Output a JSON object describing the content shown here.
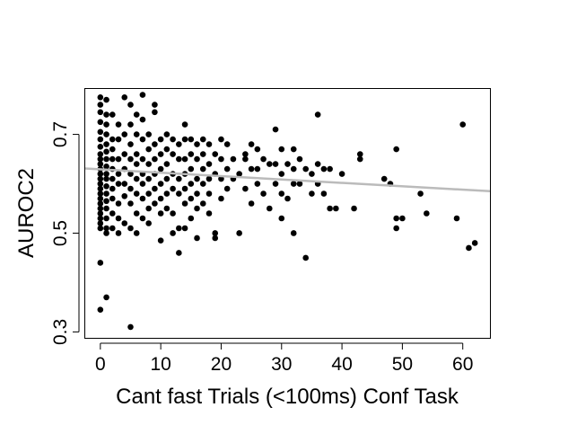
{
  "chart_data": {
    "type": "scatter",
    "title": "",
    "xlabel": "Cant fast Trials (<100ms) Conf Task",
    "ylabel": "AUROC2",
    "xlim": [
      -2.5,
      64.5
    ],
    "ylim": [
      0.288,
      0.792
    ],
    "xticks": [
      0,
      10,
      20,
      30,
      40,
      50,
      60
    ],
    "xtick_labels": [
      "0",
      "10",
      "20",
      "30",
      "40",
      "50",
      "60"
    ],
    "yticks": [
      0.3,
      0.5,
      0.7
    ],
    "ytick_labels": [
      "0.3",
      "0.5",
      "0.7"
    ],
    "grid": false,
    "point_color": "#000000",
    "fit_line": {
      "color": "#bbbbbb",
      "x": [
        -2.5,
        64.5
      ],
      "y": [
        0.631,
        0.585
      ]
    },
    "points": [
      [
        0,
        0.775
      ],
      [
        0,
        0.76
      ],
      [
        0,
        0.745
      ],
      [
        0,
        0.725
      ],
      [
        0,
        0.705
      ],
      [
        0,
        0.69
      ],
      [
        0,
        0.675
      ],
      [
        0,
        0.66
      ],
      [
        0,
        0.65
      ],
      [
        0,
        0.64
      ],
      [
        0,
        0.63
      ],
      [
        0,
        0.62
      ],
      [
        0,
        0.61
      ],
      [
        0,
        0.6
      ],
      [
        0,
        0.59
      ],
      [
        0,
        0.58
      ],
      [
        0,
        0.57
      ],
      [
        0,
        0.56
      ],
      [
        0,
        0.55
      ],
      [
        0,
        0.54
      ],
      [
        0,
        0.53
      ],
      [
        0,
        0.52
      ],
      [
        0,
        0.51
      ],
      [
        0,
        0.44
      ],
      [
        0,
        0.345
      ],
      [
        1,
        0.77
      ],
      [
        1,
        0.74
      ],
      [
        1,
        0.72
      ],
      [
        1,
        0.7
      ],
      [
        1,
        0.68
      ],
      [
        1,
        0.665
      ],
      [
        1,
        0.65
      ],
      [
        1,
        0.635
      ],
      [
        1,
        0.62
      ],
      [
        1,
        0.61
      ],
      [
        1,
        0.595
      ],
      [
        1,
        0.58
      ],
      [
        1,
        0.565
      ],
      [
        1,
        0.55
      ],
      [
        1,
        0.53
      ],
      [
        1,
        0.51
      ],
      [
        1,
        0.5
      ],
      [
        1,
        0.37
      ],
      [
        2,
        0.74
      ],
      [
        2,
        0.69
      ],
      [
        2,
        0.67
      ],
      [
        2,
        0.65
      ],
      [
        2,
        0.63
      ],
      [
        2,
        0.61
      ],
      [
        2,
        0.59
      ],
      [
        2,
        0.57
      ],
      [
        2,
        0.54
      ],
      [
        2,
        0.51
      ],
      [
        3,
        0.72
      ],
      [
        3,
        0.69
      ],
      [
        3,
        0.65
      ],
      [
        3,
        0.62
      ],
      [
        3,
        0.6
      ],
      [
        3,
        0.56
      ],
      [
        3,
        0.53
      ],
      [
        3,
        0.5
      ],
      [
        4,
        0.775
      ],
      [
        4,
        0.7
      ],
      [
        4,
        0.66
      ],
      [
        4,
        0.63
      ],
      [
        4,
        0.6
      ],
      [
        4,
        0.575
      ],
      [
        4,
        0.52
      ],
      [
        5,
        0.76
      ],
      [
        5,
        0.72
      ],
      [
        5,
        0.68
      ],
      [
        5,
        0.65
      ],
      [
        5,
        0.62
      ],
      [
        5,
        0.59
      ],
      [
        5,
        0.56
      ],
      [
        5,
        0.51
      ],
      [
        5,
        0.31
      ],
      [
        6,
        0.74
      ],
      [
        6,
        0.7
      ],
      [
        6,
        0.66
      ],
      [
        6,
        0.64
      ],
      [
        6,
        0.61
      ],
      [
        6,
        0.58
      ],
      [
        6,
        0.54
      ],
      [
        6,
        0.5
      ],
      [
        7,
        0.78
      ],
      [
        7,
        0.73
      ],
      [
        7,
        0.69
      ],
      [
        7,
        0.65
      ],
      [
        7,
        0.62
      ],
      [
        7,
        0.6
      ],
      [
        7,
        0.57
      ],
      [
        7,
        0.53
      ],
      [
        8,
        0.7
      ],
      [
        8,
        0.67
      ],
      [
        8,
        0.64
      ],
      [
        8,
        0.61
      ],
      [
        8,
        0.58
      ],
      [
        8,
        0.55
      ],
      [
        8,
        0.52
      ],
      [
        9,
        0.76
      ],
      [
        9,
        0.745
      ],
      [
        9,
        0.68
      ],
      [
        9,
        0.65
      ],
      [
        9,
        0.62
      ],
      [
        9,
        0.59
      ],
      [
        9,
        0.56
      ],
      [
        10,
        0.69
      ],
      [
        10,
        0.66
      ],
      [
        10,
        0.63
      ],
      [
        10,
        0.6
      ],
      [
        10,
        0.57
      ],
      [
        10,
        0.54
      ],
      [
        10,
        0.485
      ],
      [
        11,
        0.7
      ],
      [
        11,
        0.67
      ],
      [
        11,
        0.64
      ],
      [
        11,
        0.61
      ],
      [
        11,
        0.58
      ],
      [
        11,
        0.55
      ],
      [
        12,
        0.69
      ],
      [
        12,
        0.66
      ],
      [
        12,
        0.62
      ],
      [
        12,
        0.59
      ],
      [
        12,
        0.54
      ],
      [
        12,
        0.5
      ],
      [
        13,
        0.68
      ],
      [
        13,
        0.65
      ],
      [
        13,
        0.61
      ],
      [
        13,
        0.58
      ],
      [
        13,
        0.51
      ],
      [
        13,
        0.46
      ],
      [
        14,
        0.72
      ],
      [
        14,
        0.69
      ],
      [
        14,
        0.65
      ],
      [
        14,
        0.62
      ],
      [
        14,
        0.59
      ],
      [
        14,
        0.56
      ],
      [
        14,
        0.51
      ],
      [
        15,
        0.69
      ],
      [
        15,
        0.66
      ],
      [
        15,
        0.63
      ],
      [
        15,
        0.6
      ],
      [
        15,
        0.57
      ],
      [
        15,
        0.53
      ],
      [
        16,
        0.68
      ],
      [
        16,
        0.65
      ],
      [
        16,
        0.61
      ],
      [
        16,
        0.58
      ],
      [
        16,
        0.55
      ],
      [
        16,
        0.49
      ],
      [
        17,
        0.69
      ],
      [
        17,
        0.66
      ],
      [
        17,
        0.63
      ],
      [
        17,
        0.6
      ],
      [
        17,
        0.56
      ],
      [
        18,
        0.68
      ],
      [
        18,
        0.64
      ],
      [
        18,
        0.61
      ],
      [
        18,
        0.58
      ],
      [
        18,
        0.54
      ],
      [
        19,
        0.66
      ],
      [
        19,
        0.62
      ],
      [
        19,
        0.5
      ],
      [
        19,
        0.49
      ],
      [
        20,
        0.69
      ],
      [
        20,
        0.65
      ],
      [
        20,
        0.61
      ],
      [
        20,
        0.57
      ],
      [
        21,
        0.68
      ],
      [
        21,
        0.63
      ],
      [
        21,
        0.59
      ],
      [
        22,
        0.65
      ],
      [
        22,
        0.61
      ],
      [
        23,
        0.62
      ],
      [
        23,
        0.5
      ],
      [
        24,
        0.66
      ],
      [
        24,
        0.65
      ],
      [
        24,
        0.59
      ],
      [
        25,
        0.68
      ],
      [
        25,
        0.63
      ],
      [
        25,
        0.56
      ],
      [
        26,
        0.67
      ],
      [
        26,
        0.63
      ],
      [
        26,
        0.6
      ],
      [
        27,
        0.65
      ],
      [
        27,
        0.58
      ],
      [
        28,
        0.64
      ],
      [
        28,
        0.55
      ],
      [
        29,
        0.71
      ],
      [
        29,
        0.64
      ],
      [
        29,
        0.6
      ],
      [
        30,
        0.67
      ],
      [
        30,
        0.62
      ],
      [
        30,
        0.58
      ],
      [
        30,
        0.53
      ],
      [
        31,
        0.64
      ],
      [
        31,
        0.57
      ],
      [
        32,
        0.67
      ],
      [
        32,
        0.63
      ],
      [
        32,
        0.6
      ],
      [
        32,
        0.5
      ],
      [
        33,
        0.65
      ],
      [
        33,
        0.6
      ],
      [
        34,
        0.63
      ],
      [
        34,
        0.45
      ],
      [
        35,
        0.62
      ],
      [
        35,
        0.58
      ],
      [
        36,
        0.74
      ],
      [
        36,
        0.64
      ],
      [
        36,
        0.6
      ],
      [
        37,
        0.63
      ],
      [
        37,
        0.58
      ],
      [
        38,
        0.63
      ],
      [
        38,
        0.55
      ],
      [
        39,
        0.55
      ],
      [
        40,
        0.62
      ],
      [
        42,
        0.55
      ],
      [
        43,
        0.66
      ],
      [
        43,
        0.65
      ],
      [
        47,
        0.61
      ],
      [
        48,
        0.6
      ],
      [
        49,
        0.67
      ],
      [
        49,
        0.53
      ],
      [
        49,
        0.51
      ],
      [
        50,
        0.53
      ],
      [
        53,
        0.58
      ],
      [
        54,
        0.54
      ],
      [
        59,
        0.53
      ],
      [
        60,
        0.72
      ],
      [
        61,
        0.47
      ],
      [
        62,
        0.48
      ]
    ]
  }
}
